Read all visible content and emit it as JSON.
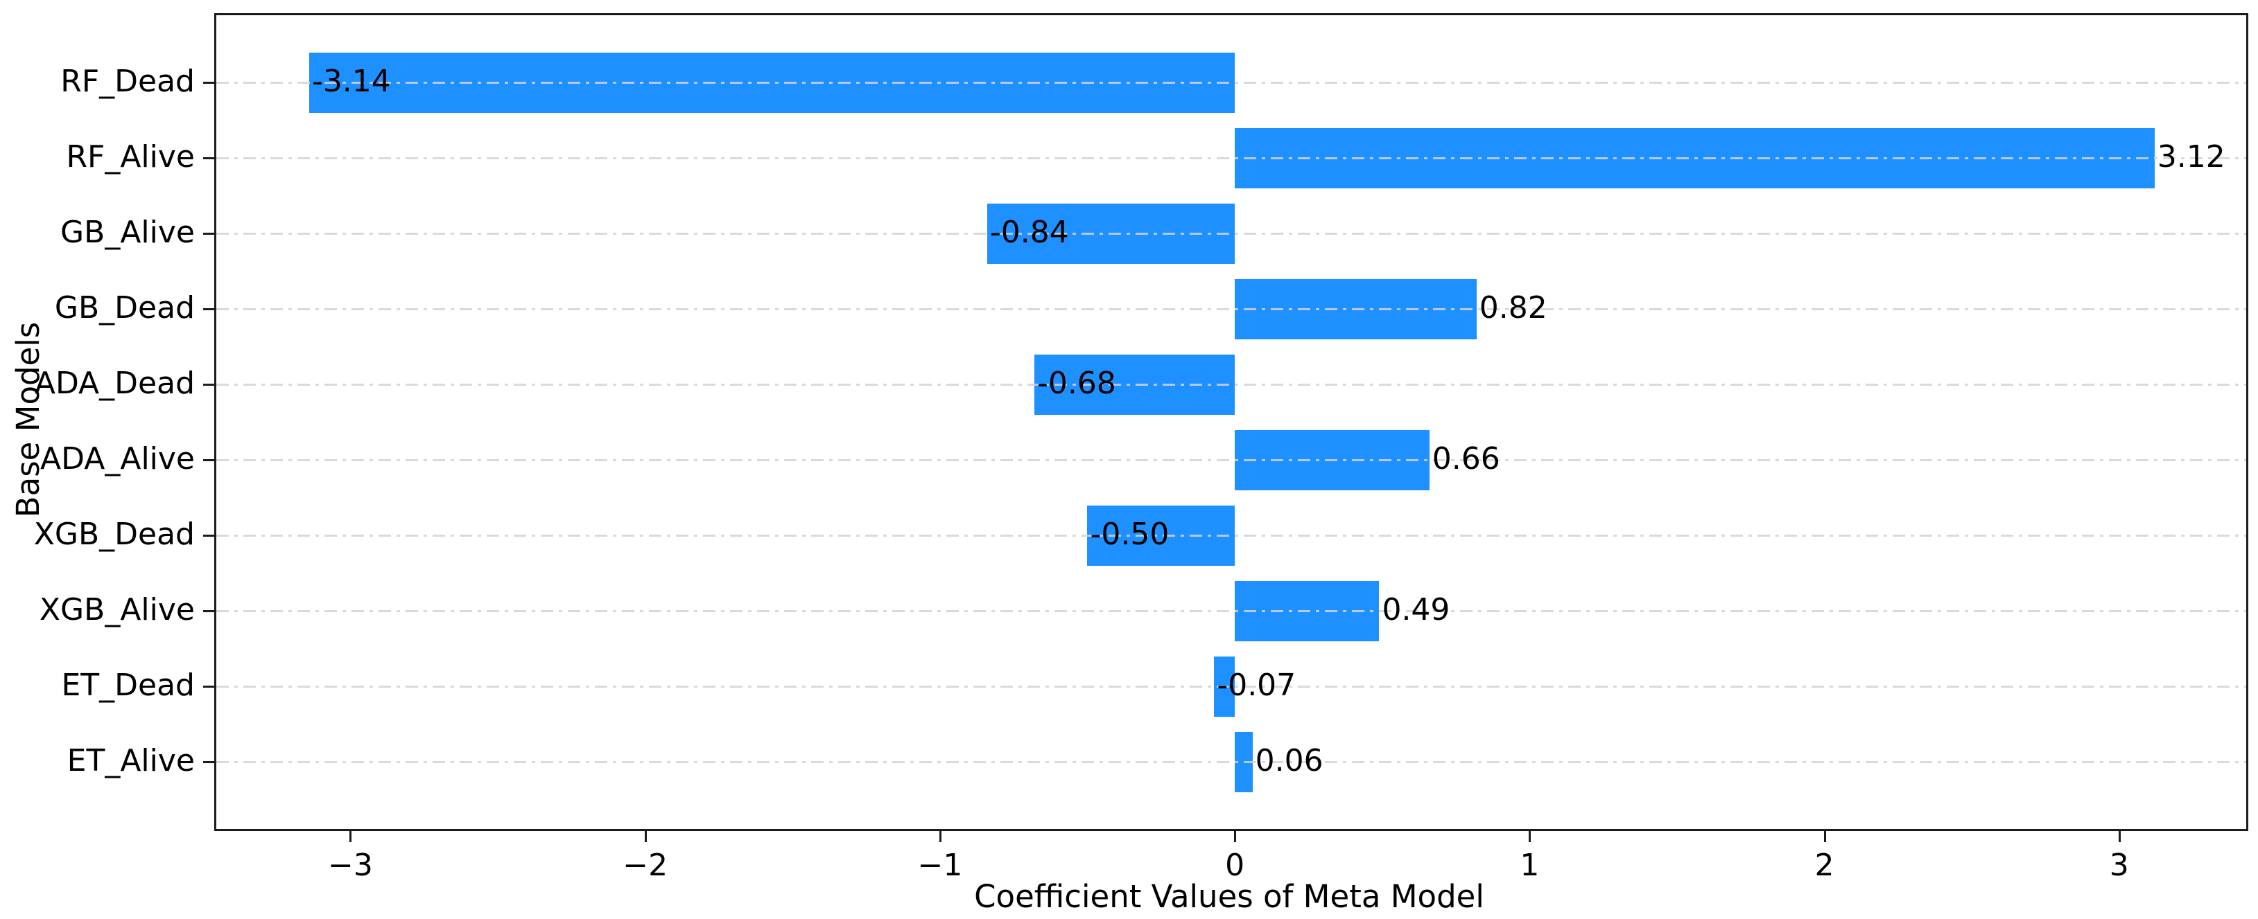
{
  "chart_data": {
    "type": "bar",
    "orientation": "horizontal",
    "title": "",
    "xlabel": "Coefficient Values of Meta Model",
    "ylabel": "Base Models",
    "categories": [
      "RF_Dead",
      "RF_Alive",
      "GB_Alive",
      "GB_Dead",
      "ADA_Dead",
      "ADA_Alive",
      "XGB_Dead",
      "XGB_Alive",
      "ET_Dead",
      "ET_Alive"
    ],
    "values": [
      -3.14,
      3.12,
      -0.84,
      0.82,
      -0.68,
      0.66,
      -0.5,
      0.49,
      -0.07,
      0.06
    ],
    "value_labels": [
      "-3.14",
      "3.12",
      "-0.84",
      "0.82",
      "-0.68",
      "0.66",
      "-0.50",
      "0.49",
      "-0.07",
      "0.06"
    ],
    "x_ticks": [
      -3,
      -2,
      -1,
      0,
      1,
      2,
      3
    ],
    "x_tick_labels": [
      "−3",
      "−2",
      "−1",
      "0",
      "1",
      "2",
      "3"
    ],
    "xlim": [
      -3.455,
      3.431
    ],
    "grid": "horizontal dash-dot, drawn over bars",
    "legend": "none",
    "colors": {
      "bar": "#1e90ff",
      "grid": "#d3d3d3",
      "spine": "#1c1c1c",
      "text": "#000000"
    }
  }
}
